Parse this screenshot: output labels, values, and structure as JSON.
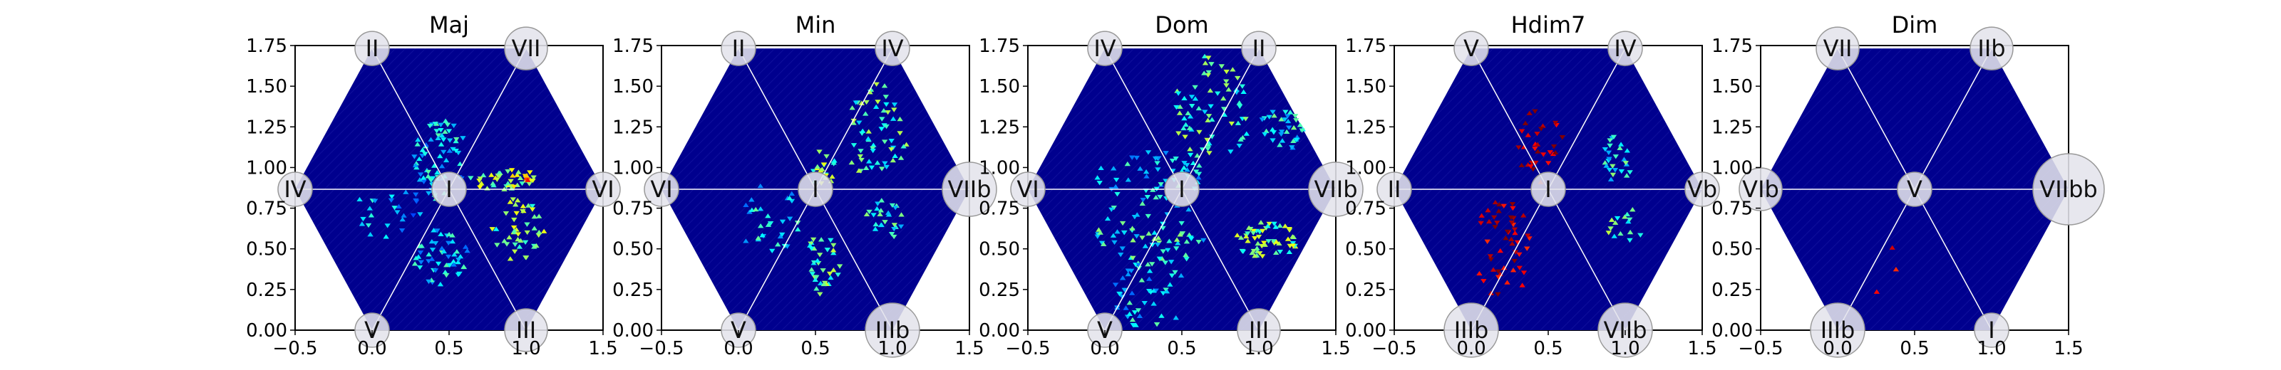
{
  "chart_data": {
    "type": "heatmap",
    "description_type": "hexagonal tonnetz heatmap panels",
    "colormap": "jet",
    "xlim": [
      -0.5,
      1.5
    ],
    "ylim": [
      0.0,
      1.75
    ],
    "x_ticks": [
      -0.5,
      0.0,
      0.5,
      1.0,
      1.5
    ],
    "x_tick_labels": [
      "−0.5",
      "0.0",
      "0.5",
      "1.0",
      "1.5"
    ],
    "y_ticks": [
      0.0,
      0.25,
      0.5,
      0.75,
      1.0,
      1.25,
      1.5,
      1.75
    ],
    "y_tick_labels": [
      "0.00",
      "0.25",
      "0.50",
      "0.75",
      "1.00",
      "1.25",
      "1.50",
      "1.75"
    ],
    "hexagon_vertices": [
      [
        0.0,
        1.732
      ],
      [
        1.0,
        1.732
      ],
      [
        1.5,
        0.866
      ],
      [
        1.0,
        0.0
      ],
      [
        0.0,
        0.0
      ],
      [
        -0.5,
        0.866
      ]
    ],
    "center": [
      0.5,
      0.866
    ],
    "panels": [
      {
        "title": "Maj",
        "center_label": "I",
        "vertex_labels": [
          "II",
          "VII",
          "VI",
          "III",
          "V",
          "IV"
        ],
        "clusters": [
          {
            "x": 0.45,
            "y": 1.05,
            "rx": 0.18,
            "ry": 0.25,
            "n": 70,
            "level": 0.35
          },
          {
            "x": 0.85,
            "y": 0.93,
            "rx": 0.22,
            "ry": 0.07,
            "n": 40,
            "level": 0.55
          },
          {
            "x": 1.0,
            "y": 0.93,
            "rx": 0.03,
            "ry": 0.03,
            "n": 6,
            "level": 0.75
          },
          {
            "x": 0.95,
            "y": 0.62,
            "rx": 0.17,
            "ry": 0.2,
            "n": 45,
            "level": 0.5
          },
          {
            "x": 0.45,
            "y": 0.45,
            "rx": 0.18,
            "ry": 0.18,
            "n": 50,
            "level": 0.35
          },
          {
            "x": 0.1,
            "y": 0.75,
            "rx": 0.22,
            "ry": 0.2,
            "n": 25,
            "level": 0.3
          }
        ]
      },
      {
        "title": "Min",
        "center_label": "I",
        "vertex_labels": [
          "II",
          "IV",
          "VIIb",
          "IIIb",
          "V",
          "VI"
        ],
        "clusters": [
          {
            "x": 0.9,
            "y": 1.2,
            "rx": 0.2,
            "ry": 0.32,
            "n": 60,
            "level": 0.45
          },
          {
            "x": 0.55,
            "y": 1.0,
            "rx": 0.08,
            "ry": 0.12,
            "n": 20,
            "level": 0.5
          },
          {
            "x": 0.2,
            "y": 0.7,
            "rx": 0.22,
            "ry": 0.22,
            "n": 30,
            "level": 0.35
          },
          {
            "x": 0.55,
            "y": 0.4,
            "rx": 0.12,
            "ry": 0.2,
            "n": 35,
            "level": 0.45
          },
          {
            "x": 0.95,
            "y": 0.68,
            "rx": 0.13,
            "ry": 0.12,
            "n": 25,
            "level": 0.4
          }
        ]
      },
      {
        "title": "Dom",
        "center_label": "I",
        "vertex_labels": [
          "IV",
          "II",
          "VIIb",
          "III",
          "V",
          "VI"
        ],
        "clusters": [
          {
            "x": 0.7,
            "y": 1.35,
            "rx": 0.25,
            "ry": 0.35,
            "n": 70,
            "level": 0.45
          },
          {
            "x": 1.15,
            "y": 1.25,
            "rx": 0.15,
            "ry": 0.15,
            "n": 40,
            "level": 0.38
          },
          {
            "x": 0.3,
            "y": 0.95,
            "rx": 0.35,
            "ry": 0.15,
            "n": 50,
            "level": 0.35
          },
          {
            "x": 0.3,
            "y": 0.6,
            "rx": 0.35,
            "ry": 0.22,
            "n": 60,
            "level": 0.4
          },
          {
            "x": 1.05,
            "y": 0.55,
            "rx": 0.2,
            "ry": 0.12,
            "n": 55,
            "level": 0.5
          },
          {
            "x": 0.3,
            "y": 0.25,
            "rx": 0.25,
            "ry": 0.25,
            "n": 50,
            "level": 0.35
          }
        ]
      },
      {
        "title": "Hdim7",
        "center_label": "I",
        "vertex_labels": [
          "V",
          "IV",
          "Vb",
          "VIIb",
          "IIIb",
          "II"
        ],
        "clusters": [
          {
            "x": 0.45,
            "y": 1.15,
            "rx": 0.15,
            "ry": 0.25,
            "n": 30,
            "level": 0.95
          },
          {
            "x": 0.2,
            "y": 0.5,
            "rx": 0.2,
            "ry": 0.3,
            "n": 50,
            "level": 0.95
          },
          {
            "x": 0.95,
            "y": 1.05,
            "rx": 0.1,
            "ry": 0.15,
            "n": 25,
            "level": 0.4
          },
          {
            "x": 1.0,
            "y": 0.65,
            "rx": 0.12,
            "ry": 0.12,
            "n": 15,
            "level": 0.45
          }
        ]
      },
      {
        "title": "Dim",
        "center_label": "V",
        "vertex_labels": [
          "VII",
          "IIb",
          "VIIbb",
          "I",
          "IIIb",
          "VIb"
        ],
        "clusters": [
          {
            "x": 0.3,
            "y": 0.4,
            "rx": 0.25,
            "ry": 0.2,
            "n": 3,
            "level": 0.85
          }
        ]
      }
    ]
  }
}
